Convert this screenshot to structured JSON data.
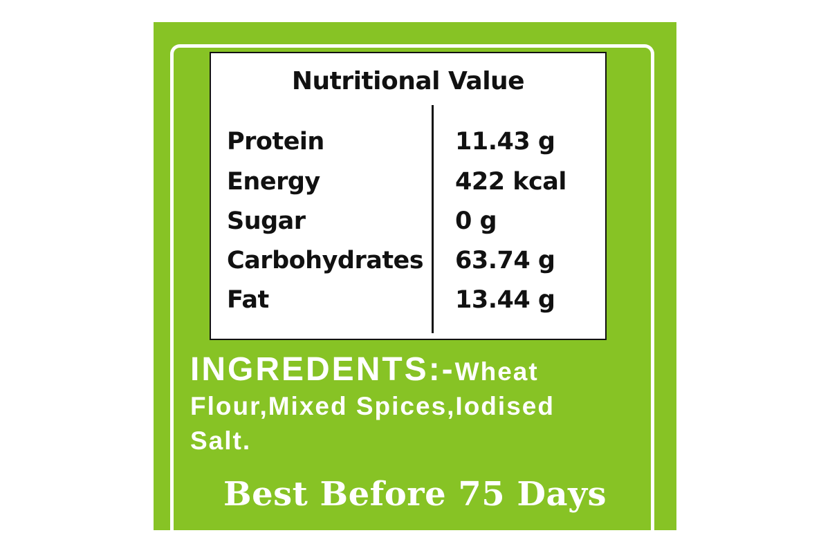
{
  "colors": {
    "background": "#87c325",
    "text_light": "#ffffff",
    "table_border": "#111111"
  },
  "nutrition": {
    "title": "Nutritional Value",
    "rows": [
      {
        "label": "Protein",
        "value": "11.43 g"
      },
      {
        "label": "Energy",
        "value": "422 kcal"
      },
      {
        "label": "Sugar",
        "value": "0 g"
      },
      {
        "label": "Carbohydrates",
        "value": "63.74 g"
      },
      {
        "label": "Fat",
        "value": "13.44 g"
      }
    ]
  },
  "ingredients": {
    "heading": "INGREDENTS:-",
    "text": "Wheat Flour,Mixed Spices,Iodised Salt."
  },
  "best_before": "Best Before 75 Days"
}
